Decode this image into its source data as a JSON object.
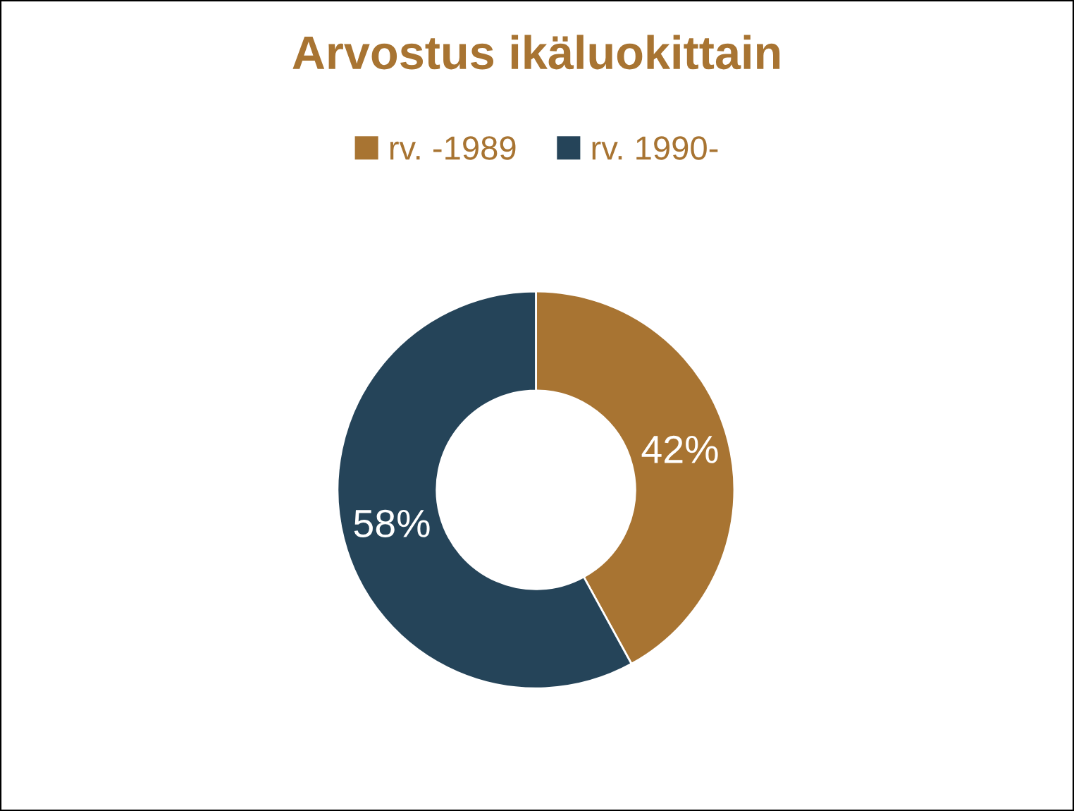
{
  "chart_data": {
    "type": "donut",
    "title": "Arvostus ikäluokittain",
    "categories": [
      "rv. -1989",
      "rv. 1990-"
    ],
    "values": [
      42,
      58
    ],
    "colors": [
      "#a87432",
      "#254459"
    ],
    "value_labels": [
      "42%",
      "58%"
    ],
    "legend": "top"
  }
}
